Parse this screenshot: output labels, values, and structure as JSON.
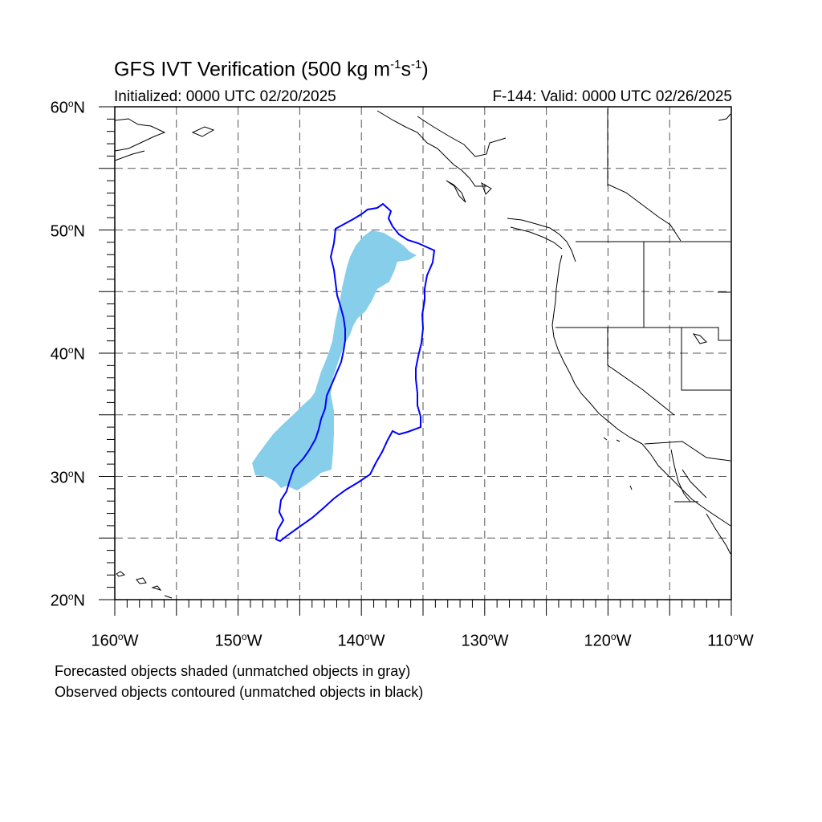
{
  "title": {
    "main": "GFS IVT Verification (500 kg m",
    "exp1": "-1",
    "mid": "s",
    "exp2": "-1",
    "end": ")"
  },
  "initialized": "Initialized: 0000 UTC 02/20/2025",
  "valid": "F-144: Valid: 0000 UTC 02/26/2025",
  "lat_labels": [
    "60",
    "50",
    "40",
    "30",
    "20"
  ],
  "lat_suffix": "N",
  "lon_labels": [
    "160",
    "150",
    "140",
    "130",
    "120",
    "110"
  ],
  "lon_suffix": "W",
  "degree_symbol": "o",
  "notes": [
    "Forecasted objects shaded (unmatched objects in gray)",
    "Observed objects contoured (unmatched objects in black)"
  ],
  "colors": {
    "forecast_fill": "#87ceeb",
    "observed_contour": "#0000ff",
    "coastline": "#000000",
    "grid": "#555555"
  },
  "map": {
    "projection": "cylindrical equidistant",
    "lon_range": [
      -160,
      -110
    ],
    "lat_range": [
      20,
      60
    ],
    "grid_spacing_deg": 5,
    "grid_style": "dashed"
  }
}
